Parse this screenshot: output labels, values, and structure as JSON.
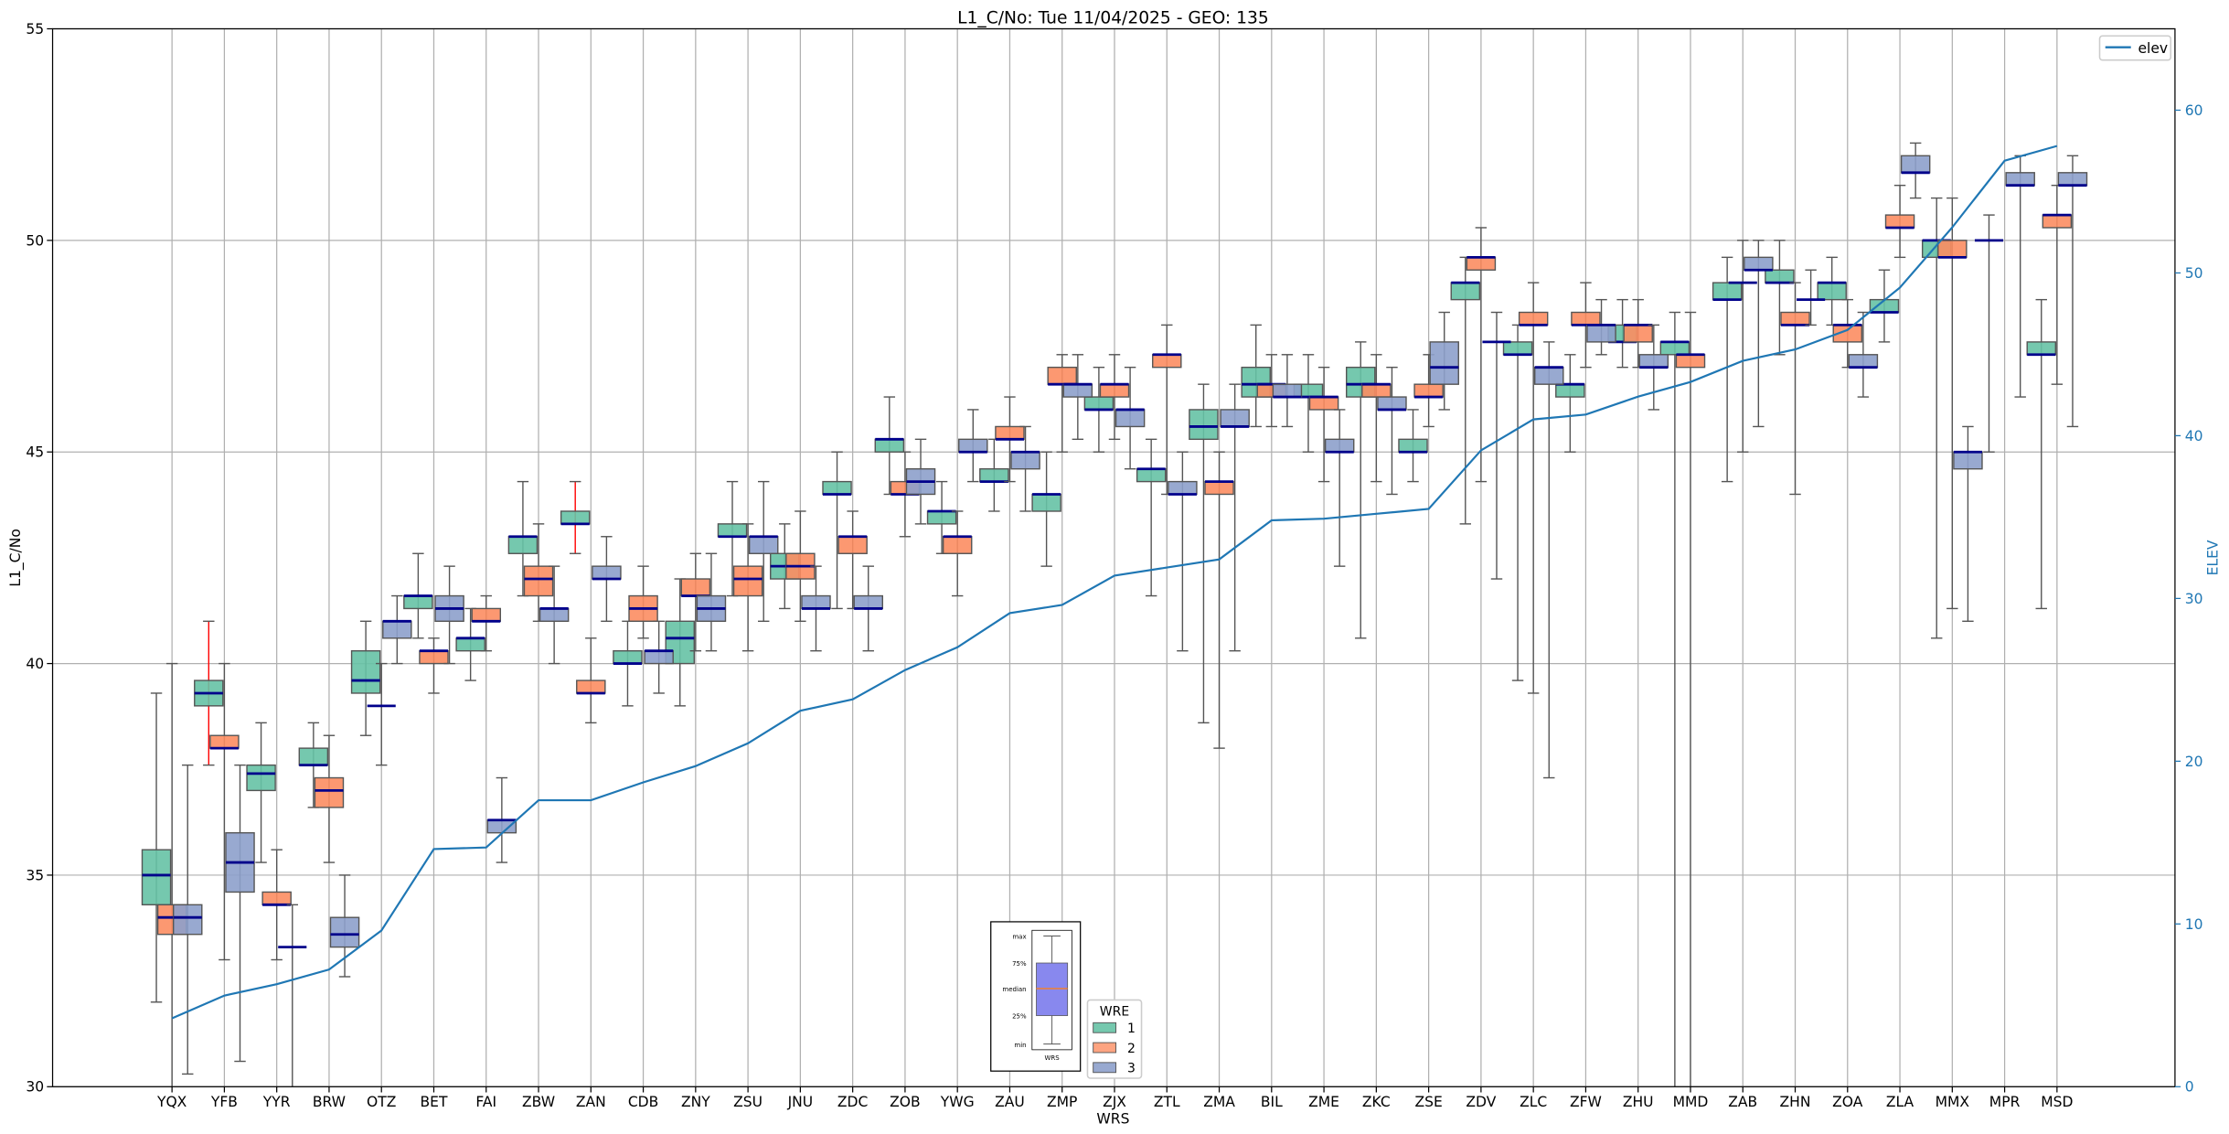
{
  "chart_data": {
    "type": "box",
    "title": "L1_C/No: Tue 11/04/2025 - GEO: 135",
    "xlabel": "WRS",
    "ylabel": "L1_C/No",
    "y2label": "ELEV",
    "ylim": [
      30,
      55
    ],
    "y2lim": [
      0,
      65
    ],
    "yticks": [
      30,
      35,
      40,
      45,
      50,
      55
    ],
    "y2ticks": [
      0,
      10,
      20,
      30,
      40,
      50,
      60
    ],
    "grid": true,
    "colors": {
      "1": "#66c2a5",
      "2": "#fc8d62",
      "3": "#8da0cb",
      "median": "#00008b",
      "whisker": "#555555",
      "whisker_flag": "#ff0000",
      "elev": "#1f77b4"
    },
    "legend": {
      "title": "WRE",
      "entries": [
        "1",
        "2",
        "3"
      ],
      "placement": "bottom-center"
    },
    "elev_legend": {
      "label": "elev",
      "placement": "top-right"
    },
    "key_inset": {
      "labels": [
        "max",
        "75%",
        "median",
        "25%",
        "min"
      ],
      "xlabel": "WRS"
    },
    "box_format": "[min, q1, median, q3, max]",
    "categories": [
      "YQX",
      "YFB",
      "YYR",
      "BRW",
      "OTZ",
      "BET",
      "FAI",
      "ZBW",
      "ZAN",
      "CDB",
      "ZNY",
      "ZSU",
      "JNU",
      "ZDC",
      "ZOB",
      "YWG",
      "ZAU",
      "ZMP",
      "ZJX",
      "ZTL",
      "ZMA",
      "BIL",
      "ZME",
      "ZKC",
      "ZSE",
      "ZDV",
      "ZLC",
      "ZFW",
      "ZHU",
      "MMD",
      "ZAB",
      "ZHN",
      "ZOA",
      "ZLA",
      "MMX",
      "MPR",
      "MSD"
    ],
    "elev": [
      4.2,
      5.6,
      6.3,
      7.2,
      9.6,
      14.6,
      14.7,
      17.6,
      17.6,
      18.7,
      19.7,
      21.1,
      23.1,
      23.8,
      25.6,
      27.0,
      29.1,
      29.6,
      31.4,
      31.9,
      32.4,
      34.8,
      34.9,
      35.2,
      35.5,
      39.1,
      41.0,
      41.3,
      42.4,
      43.3,
      44.6,
      45.3,
      46.5,
      49.1,
      52.8,
      56.9,
      57.8
    ],
    "flagged": [
      [
        "YFB",
        1
      ],
      [
        "ZAN",
        1
      ]
    ],
    "series": [
      {
        "name": "1",
        "boxes": [
          [
            32.0,
            34.3,
            35.0,
            35.6,
            39.3
          ],
          [
            37.6,
            39.0,
            39.3,
            39.6,
            41.0
          ],
          [
            35.3,
            37.0,
            37.4,
            37.6,
            38.6
          ],
          [
            36.6,
            37.6,
            37.6,
            38.0,
            38.6
          ],
          [
            38.3,
            39.3,
            39.6,
            40.3,
            41.0
          ],
          [
            40.6,
            41.3,
            41.6,
            41.6,
            42.6
          ],
          [
            39.6,
            40.3,
            40.6,
            40.6,
            41.3
          ],
          [
            41.6,
            42.6,
            43.0,
            43.0,
            44.3
          ],
          [
            42.6,
            43.3,
            43.3,
            43.6,
            44.3
          ],
          [
            39.0,
            40.0,
            40.0,
            40.3,
            41.0
          ],
          [
            39.0,
            40.0,
            40.6,
            41.0,
            42.0
          ],
          [
            41.6,
            43.0,
            43.0,
            43.3,
            44.3
          ],
          [
            41.3,
            42.0,
            42.3,
            42.6,
            43.3
          ],
          [
            41.3,
            44.0,
            44.0,
            44.3,
            45.0
          ],
          [
            44.0,
            45.0,
            45.3,
            45.3,
            46.3
          ],
          [
            42.6,
            43.3,
            43.6,
            43.6,
            44.3
          ],
          [
            43.6,
            44.3,
            44.3,
            44.6,
            45.3
          ],
          [
            42.3,
            43.6,
            44.0,
            44.0,
            45.0
          ],
          [
            45.0,
            46.0,
            46.0,
            46.3,
            47.0
          ],
          [
            41.6,
            44.3,
            44.6,
            44.6,
            45.3
          ],
          [
            38.6,
            45.3,
            45.6,
            46.0,
            46.6
          ],
          [
            45.6,
            46.3,
            46.6,
            47.0,
            48.0
          ],
          [
            45.0,
            46.3,
            46.3,
            46.6,
            47.3
          ],
          [
            40.6,
            46.3,
            46.6,
            47.0,
            47.6
          ],
          [
            44.3,
            45.0,
            45.0,
            45.3,
            46.0
          ],
          [
            43.3,
            48.6,
            49.0,
            49.0,
            49.6
          ],
          [
            39.6,
            47.3,
            47.3,
            47.6,
            48.0
          ],
          [
            45.0,
            46.3,
            46.6,
            46.6,
            47.3
          ],
          [
            47.0,
            47.6,
            47.6,
            48.0,
            48.6
          ],
          [
            29.0,
            47.3,
            47.6,
            47.6,
            48.3
          ],
          [
            44.3,
            48.6,
            48.6,
            49.0,
            49.6
          ],
          [
            47.3,
            49.0,
            49.0,
            49.3,
            50.0
          ],
          [
            48.0,
            48.6,
            49.0,
            49.0,
            49.6
          ],
          [
            47.6,
            48.3,
            48.3,
            48.6,
            49.3
          ],
          [
            40.6,
            49.6,
            50.0,
            50.0,
            51.0
          ],
          [
            45.0,
            50.0,
            50.0,
            50.0,
            50.6
          ],
          [
            41.3,
            47.3,
            47.3,
            47.6,
            48.6
          ]
        ]
      },
      {
        "name": "2",
        "boxes": [
          [
            29.0,
            33.6,
            34.0,
            34.3,
            40.0
          ],
          [
            33.0,
            38.0,
            38.0,
            38.3,
            40.0
          ],
          [
            33.0,
            34.3,
            34.3,
            34.6,
            35.6
          ],
          [
            35.3,
            36.6,
            37.0,
            37.3,
            38.3
          ],
          [
            37.6,
            39.0,
            39.0,
            39.0,
            40.0
          ],
          [
            39.3,
            40.0,
            40.3,
            40.3,
            40.6
          ],
          [
            40.3,
            41.0,
            41.0,
            41.3,
            41.6
          ],
          [
            41.0,
            41.6,
            42.0,
            42.3,
            43.3
          ],
          [
            38.6,
            39.3,
            39.3,
            39.6,
            40.6
          ],
          [
            40.6,
            41.0,
            41.3,
            41.6,
            42.3
          ],
          [
            40.3,
            41.6,
            41.6,
            42.0,
            42.6
          ],
          [
            40.3,
            41.6,
            42.0,
            42.3,
            43.3
          ],
          [
            41.0,
            42.0,
            42.3,
            42.6,
            43.6
          ],
          [
            41.3,
            42.6,
            43.0,
            43.0,
            43.6
          ],
          [
            43.0,
            44.0,
            44.0,
            44.3,
            45.0
          ],
          [
            41.6,
            42.6,
            43.0,
            43.0,
            43.6
          ],
          [
            44.3,
            45.3,
            45.3,
            45.6,
            46.3
          ],
          [
            45.0,
            46.6,
            46.6,
            47.0,
            47.3
          ],
          [
            45.3,
            46.3,
            46.6,
            46.6,
            47.3
          ],
          [
            44.0,
            47.0,
            47.3,
            47.3,
            48.0
          ],
          [
            38.0,
            44.0,
            44.3,
            44.3,
            45.0
          ],
          [
            45.6,
            46.3,
            46.6,
            46.6,
            47.3
          ],
          [
            44.3,
            46.0,
            46.3,
            46.3,
            47.0
          ],
          [
            44.3,
            46.3,
            46.6,
            46.6,
            47.3
          ],
          [
            45.6,
            46.3,
            46.3,
            46.6,
            47.3
          ],
          [
            44.3,
            49.3,
            49.6,
            49.6,
            50.3
          ],
          [
            39.3,
            48.0,
            48.0,
            48.3,
            49.0
          ],
          [
            47.0,
            48.0,
            48.0,
            48.3,
            49.0
          ],
          [
            47.0,
            47.6,
            48.0,
            48.0,
            48.6
          ],
          [
            29.0,
            47.0,
            47.3,
            47.3,
            48.3
          ],
          [
            45.0,
            49.0,
            49.0,
            49.0,
            50.0
          ],
          [
            44.0,
            48.0,
            48.0,
            48.3,
            49.0
          ],
          [
            47.0,
            47.6,
            48.0,
            48.0,
            48.6
          ],
          [
            49.6,
            50.3,
            50.3,
            50.6,
            51.3
          ],
          [
            41.3,
            49.6,
            49.6,
            50.0,
            51.0
          ],
          null,
          [
            46.6,
            50.3,
            50.6,
            50.6,
            51.3
          ]
        ]
      },
      {
        "name": "3",
        "boxes": [
          [
            30.3,
            33.6,
            34.0,
            34.3,
            37.6
          ],
          [
            30.6,
            34.6,
            35.3,
            36.0,
            37.6
          ],
          [
            29.0,
            33.3,
            33.3,
            33.3,
            34.3
          ],
          [
            32.6,
            33.3,
            33.6,
            34.0,
            35.0
          ],
          [
            40.0,
            40.6,
            41.0,
            41.0,
            41.6
          ],
          [
            40.0,
            41.0,
            41.3,
            41.6,
            42.3
          ],
          [
            35.3,
            36.0,
            36.3,
            36.3,
            37.3
          ],
          [
            40.0,
            41.0,
            41.3,
            41.3,
            42.3
          ],
          [
            41.0,
            42.0,
            42.0,
            42.3,
            43.0
          ],
          [
            39.3,
            40.0,
            40.3,
            40.3,
            41.0
          ],
          [
            40.3,
            41.0,
            41.3,
            41.6,
            42.6
          ],
          [
            41.0,
            42.6,
            43.0,
            43.0,
            44.3
          ],
          [
            40.3,
            41.3,
            41.3,
            41.6,
            42.3
          ],
          [
            40.3,
            41.3,
            41.3,
            41.6,
            42.3
          ],
          [
            43.3,
            44.0,
            44.3,
            44.6,
            45.3
          ],
          [
            44.3,
            45.0,
            45.0,
            45.3,
            46.0
          ],
          [
            43.6,
            44.6,
            45.0,
            45.0,
            45.6
          ],
          [
            45.3,
            46.3,
            46.6,
            46.6,
            47.3
          ],
          [
            44.6,
            45.6,
            46.0,
            46.0,
            47.0
          ],
          [
            40.3,
            44.0,
            44.0,
            44.3,
            45.0
          ],
          [
            40.3,
            45.6,
            45.6,
            46.0,
            46.6
          ],
          [
            45.6,
            46.3,
            46.3,
            46.6,
            47.3
          ],
          [
            42.3,
            45.0,
            45.0,
            45.3,
            46.0
          ],
          [
            44.0,
            46.0,
            46.0,
            46.3,
            47.0
          ],
          [
            46.0,
            46.6,
            47.0,
            47.6,
            48.3
          ],
          [
            42.0,
            47.6,
            47.6,
            47.6,
            48.3
          ],
          [
            37.3,
            46.6,
            47.0,
            47.0,
            47.6
          ],
          [
            47.3,
            47.6,
            48.0,
            48.0,
            48.6
          ],
          [
            46.0,
            47.0,
            47.0,
            47.3,
            48.0
          ],
          null,
          [
            45.6,
            49.3,
            49.3,
            49.6,
            50.0
          ],
          [
            48.0,
            48.6,
            48.6,
            48.6,
            49.3
          ],
          [
            46.3,
            47.0,
            47.0,
            47.3,
            48.3
          ],
          [
            51.0,
            51.6,
            51.6,
            52.0,
            52.3
          ],
          [
            41.0,
            44.6,
            45.0,
            45.0,
            45.6
          ],
          [
            46.3,
            51.3,
            51.3,
            51.6,
            52.0
          ],
          [
            45.6,
            51.3,
            51.3,
            51.6,
            52.0
          ]
        ]
      }
    ]
  }
}
